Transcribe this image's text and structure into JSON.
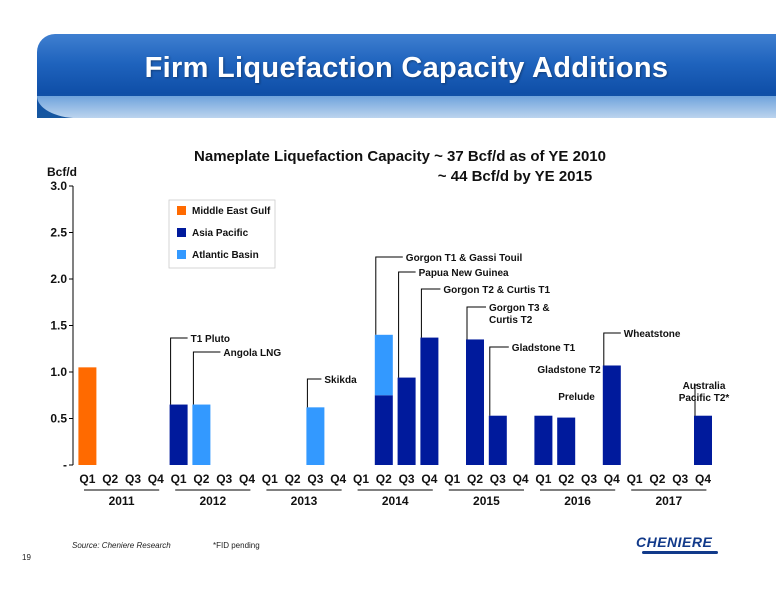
{
  "slide": {
    "title": "Firm Liquefaction Capacity Additions",
    "source": "Source: Cheniere Research",
    "footnote": "*FID pending",
    "page_number": "19",
    "logo_text": "CHENIERE"
  },
  "colors": {
    "banner": "#1f63bd",
    "middle_east_gulf": "#ff6a00",
    "asia_pacific": "#001a9c",
    "atlantic_basin": "#3399ff",
    "logo": "#123a8a"
  },
  "chart_data": {
    "type": "bar",
    "title": "Nameplate Liquefaction Capacity ~ 37 Bcf/d as of YE 2010",
    "subtitle": "~ 44 Bcf/d by YE 2015",
    "ylabel": "Bcf/d",
    "xlabel": "",
    "ylim": [
      0,
      3.0
    ],
    "y_ticks": [
      "-",
      "0.5",
      "1.0",
      "1.5",
      "2.0",
      "2.5",
      "3.0"
    ],
    "years": [
      "2011",
      "2012",
      "2013",
      "2014",
      "2015",
      "2016",
      "2017"
    ],
    "quarters": [
      "Q1",
      "Q2",
      "Q3",
      "Q4"
    ],
    "legend": {
      "position": "top-left",
      "entries": [
        {
          "name": "Middle East Gulf",
          "color": "#ff6a00"
        },
        {
          "name": "Asia Pacific",
          "color": "#001a9c"
        },
        {
          "name": "Atlantic Basin",
          "color": "#3399ff"
        }
      ]
    },
    "series": [
      {
        "name": "Middle East Gulf",
        "color": "#ff6a00",
        "values": [
          1.05,
          0,
          0,
          0,
          0,
          0,
          0,
          0,
          0,
          0,
          0,
          0,
          0,
          0,
          0,
          0,
          0,
          0,
          0,
          0,
          0,
          0,
          0,
          0,
          0,
          0,
          0,
          0
        ]
      },
      {
        "name": "Asia Pacific",
        "color": "#001a9c",
        "values": [
          0,
          0,
          0,
          0,
          0.65,
          0,
          0,
          0,
          0,
          0,
          0,
          0,
          0,
          0.75,
          0.94,
          1.37,
          0,
          1.35,
          0.53,
          0,
          0.53,
          0.51,
          0,
          1.07,
          0,
          0,
          0,
          0.53
        ]
      },
      {
        "name": "Atlantic Basin",
        "color": "#3399ff",
        "values": [
          0,
          0,
          0,
          0,
          0,
          0.65,
          0,
          0,
          0,
          0,
          0.62,
          0,
          0,
          0.65,
          0,
          0,
          0,
          0,
          0,
          0,
          0,
          0,
          0,
          0,
          0,
          0,
          0,
          0
        ]
      }
    ],
    "annotations": [
      {
        "text": "T1 Pluto",
        "index": 4,
        "value": 0.65
      },
      {
        "text": "Angola LNG",
        "index": 5,
        "value": 0.65
      },
      {
        "text": "Skikda",
        "index": 10,
        "value": 0.62
      },
      {
        "text": "Gorgon T1 & Gassi Touil",
        "index": 13,
        "value": 1.4
      },
      {
        "text": "Papua New Guinea",
        "index": 14,
        "value": 0.94
      },
      {
        "text": "Gorgon T2 & Curtis T1",
        "index": 15,
        "value": 1.37
      },
      {
        "text": "Gorgon T3 & Curtis T2",
        "index": 17,
        "value": 1.35
      },
      {
        "text": "Gladstone T1",
        "index": 18,
        "value": 0.53
      },
      {
        "text": "Gladstone T2",
        "index": 20,
        "value": 0.53
      },
      {
        "text": "Prelude",
        "index": 21,
        "value": 0.51
      },
      {
        "text": "Wheatstone",
        "index": 23,
        "value": 1.07
      },
      {
        "text": "Australia Pacific T2*",
        "index": 27,
        "value": 0.53
      }
    ]
  }
}
